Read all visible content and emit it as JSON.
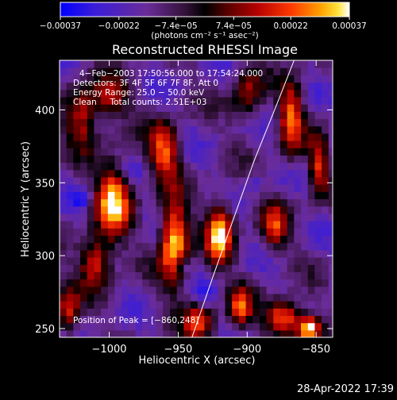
{
  "chart_data": {
    "type": "heatmap",
    "title": "Reconstructed RHESSI Image",
    "xlabel": "Heliocentric X (arcsec)",
    "ylabel": "Heliocentric Y (arcsec)",
    "xlim": [
      -1036,
      -838
    ],
    "ylim": [
      244,
      434
    ],
    "xticks": [
      {
        "value": -1000,
        "label": "−1000"
      },
      {
        "value": -950,
        "label": "−950"
      },
      {
        "value": -900,
        "label": "−900"
      },
      {
        "value": -850,
        "label": "−850"
      }
    ],
    "yticks": [
      {
        "value": 250,
        "label": "250"
      },
      {
        "value": 300,
        "label": "300"
      },
      {
        "value": 350,
        "label": "350"
      },
      {
        "value": 400,
        "label": "400"
      }
    ],
    "colorbar": {
      "min": -0.00037,
      "max": 0.00037,
      "ticks": [
        {
          "value": -0.00037,
          "label": "−0.00037"
        },
        {
          "value": -0.00022,
          "label": "−0.00022"
        },
        {
          "value": -7.4e-05,
          "label": "−7.4e−05"
        },
        {
          "value": 7.4e-05,
          "label": "7.4e−05"
        },
        {
          "value": 0.00022,
          "label": "0.00022"
        },
        {
          "value": 0.00037,
          "label": "0.00037"
        }
      ],
      "units_label": "(photons cm⁻² s⁻¹ asec⁻²)"
    },
    "annotations": [
      "4−Feb−2003 17:50:56.000 to 17:54:24.000",
      "Detectors: 3F 4F 5F 6F 7F 8F, Att 0",
      "Energy Range: 25.0 − 50.0 keV",
      "Clean     Total counts: 2.51E+03"
    ],
    "peak_label": "Position of Peak = [−860,248]",
    "limb_points": [
      [
        -940,
        244
      ],
      [
        -925,
        285
      ],
      [
        -910,
        325
      ],
      [
        -895,
        365
      ],
      [
        -878,
        405
      ],
      [
        -866,
        434
      ]
    ],
    "bright_blobs": [
      {
        "x": -953,
        "y": 310,
        "sx": 7,
        "sy": 20,
        "amp": 1.2
      },
      {
        "x": -997,
        "y": 338,
        "sx": 9,
        "sy": 18,
        "amp": 1.05
      },
      {
        "x": -920,
        "y": 316,
        "sx": 7,
        "sy": 15,
        "amp": 1.05
      },
      {
        "x": -960,
        "y": 372,
        "sx": 8,
        "sy": 14,
        "amp": 0.85
      },
      {
        "x": -1010,
        "y": 296,
        "sx": 8,
        "sy": 12,
        "amp": 0.8
      },
      {
        "x": -1020,
        "y": 395,
        "sx": 8,
        "sy": 14,
        "amp": 0.7
      },
      {
        "x": -868,
        "y": 395,
        "sx": 6,
        "sy": 18,
        "amp": 0.85
      },
      {
        "x": -848,
        "y": 362,
        "sx": 5,
        "sy": 14,
        "amp": 0.75
      },
      {
        "x": -873,
        "y": 258,
        "sx": 9,
        "sy": 8,
        "amp": 1.0
      },
      {
        "x": -855,
        "y": 250,
        "sx": 6,
        "sy": 6,
        "amp": 1.25
      },
      {
        "x": -905,
        "y": 265,
        "sx": 6,
        "sy": 10,
        "amp": 0.75
      },
      {
        "x": -1000,
        "y": 408,
        "sx": 10,
        "sy": 10,
        "amp": 0.6
      },
      {
        "x": -900,
        "y": 410,
        "sx": 8,
        "sy": 12,
        "amp": 0.6
      },
      {
        "x": -1030,
        "y": 262,
        "sx": 6,
        "sy": 12,
        "amp": 0.7
      },
      {
        "x": -935,
        "y": 255,
        "sx": 8,
        "sy": 10,
        "amp": 0.7
      },
      {
        "x": -880,
        "y": 320,
        "sx": 7,
        "sy": 12,
        "amp": 0.65
      }
    ],
    "dark_blobs": [
      {
        "x": -1020,
        "y": 340,
        "sx": 5,
        "sy": 5,
        "amp": 0.8
      },
      {
        "x": -948,
        "y": 294,
        "sx": 4,
        "sy": 4,
        "amp": 0.8
      },
      {
        "x": -930,
        "y": 272,
        "sx": 6,
        "sy": 6,
        "amp": 0.6
      },
      {
        "x": -985,
        "y": 360,
        "sx": 5,
        "sy": 5,
        "amp": 0.5
      },
      {
        "x": -895,
        "y": 350,
        "sx": 5,
        "sy": 5,
        "amp": 0.5
      }
    ]
  },
  "footer": {
    "timestamp": "28-Apr-2022 17:39"
  }
}
